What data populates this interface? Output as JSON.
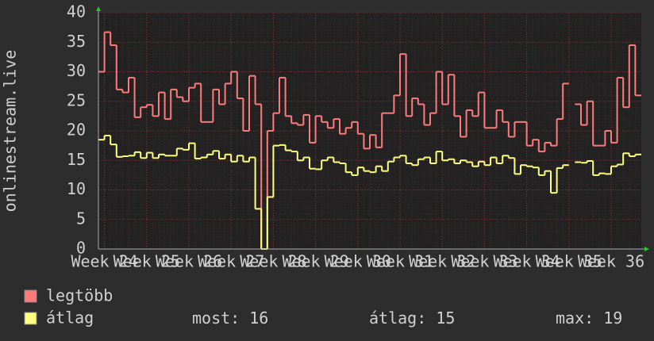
{
  "chart_data": {
    "type": "step-line",
    "y_label": "onlinestream.live",
    "xlim": [
      0,
      90
    ],
    "xticks": [
      {
        "value": 1,
        "label": "Week 24"
      },
      {
        "value": 8,
        "label": "Week 25"
      },
      {
        "value": 15,
        "label": "Week 26"
      },
      {
        "value": 22,
        "label": "Week 27"
      },
      {
        "value": 29,
        "label": "Week 28"
      },
      {
        "value": 36,
        "label": "Week 29"
      },
      {
        "value": 43,
        "label": "Week 30"
      },
      {
        "value": 50,
        "label": "Week 31"
      },
      {
        "value": 57,
        "label": "Week 32"
      },
      {
        "value": 64,
        "label": "Week 33"
      },
      {
        "value": 71,
        "label": "Week 34"
      },
      {
        "value": 78,
        "label": "Week 35"
      },
      {
        "value": 85,
        "label": "Week 36"
      }
    ],
    "ylim": [
      0,
      40
    ],
    "yticks": [
      0,
      5,
      10,
      15,
      20,
      25,
      30,
      35,
      40
    ],
    "grid": true,
    "x": [
      0,
      1,
      2,
      3,
      4,
      5,
      6,
      7,
      8,
      9,
      10,
      11,
      12,
      13,
      14,
      15,
      16,
      17,
      18,
      19,
      20,
      21,
      22,
      23,
      24,
      25,
      26,
      27,
      28,
      29,
      30,
      31,
      32,
      33,
      34,
      35,
      36,
      37,
      38,
      39,
      40,
      41,
      42,
      43,
      44,
      45,
      46,
      47,
      48,
      49,
      50,
      51,
      52,
      53,
      54,
      55,
      56,
      57,
      58,
      59,
      60,
      61,
      62,
      63,
      64,
      65,
      66,
      67,
      68,
      69,
      70,
      71,
      72,
      73,
      74,
      75,
      76,
      77,
      78,
      79,
      80,
      81,
      82,
      83,
      84,
      85,
      86,
      87,
      88,
      89
    ],
    "series": [
      {
        "name": "legtöbb",
        "color": "#ff7b7b",
        "values": [
          30,
          36.7,
          34.5,
          27,
          26.5,
          29,
          22.3,
          24,
          24.4,
          22.5,
          26.5,
          22,
          27,
          25.7,
          25,
          27.3,
          28,
          21.5,
          21.5,
          27,
          24.5,
          28,
          30,
          25.5,
          20,
          29.3,
          24.5,
          0,
          20,
          23,
          29,
          22.5,
          21.3,
          21,
          22.7,
          18,
          22.5,
          21.5,
          20.5,
          22,
          19.5,
          20.5,
          21.5,
          19.5,
          17,
          19.3,
          17.2,
          23,
          23,
          26,
          33,
          22.5,
          25.5,
          24.5,
          21,
          23,
          30,
          24.5,
          29.5,
          22.5,
          19,
          23.5,
          22.5,
          26.5,
          20.5,
          20.5,
          23.5,
          21.5,
          19,
          21.5,
          21.5,
          17.5,
          18.5,
          16.5,
          18,
          17.5,
          22,
          28,
          null,
          24.5,
          21,
          25,
          17.5,
          17.5,
          20,
          18,
          29,
          24,
          34.5,
          26
        ]
      },
      {
        "name": "átlag",
        "color": "#ffff80",
        "values": [
          18.5,
          19.2,
          17.7,
          15.6,
          15.7,
          15.8,
          16.4,
          15.4,
          16.3,
          15.4,
          16,
          15.8,
          15.8,
          17,
          16.8,
          17.9,
          15.3,
          15.5,
          16,
          16.6,
          15.3,
          16,
          14.8,
          15.8,
          14.8,
          15.5,
          6.8,
          0,
          8.8,
          17.5,
          17.6,
          16.7,
          16.5,
          15,
          15.5,
          13.6,
          13.5,
          15,
          15.5,
          14.7,
          14.5,
          13,
          12.5,
          13.8,
          13.2,
          13,
          14,
          13.2,
          14.8,
          15.5,
          15.8,
          14.5,
          14.2,
          15.2,
          15.5,
          14.5,
          16.5,
          15,
          15.2,
          14.5,
          15,
          14.7,
          14,
          14.8,
          14.2,
          15.5,
          14.5,
          15.8,
          15.4,
          12.7,
          14.2,
          14,
          13.8,
          12.5,
          13.2,
          9.5,
          13.7,
          14.2,
          null,
          14.7,
          14.6,
          14.9,
          12.5,
          12.8,
          12.7,
          14,
          14.3,
          16.2,
          15.7,
          16
        ]
      }
    ],
    "stats": [
      {
        "label": "most:",
        "value": 16
      },
      {
        "label": "átlag:",
        "value": 15
      },
      {
        "label": "max:",
        "value": 19
      }
    ]
  }
}
